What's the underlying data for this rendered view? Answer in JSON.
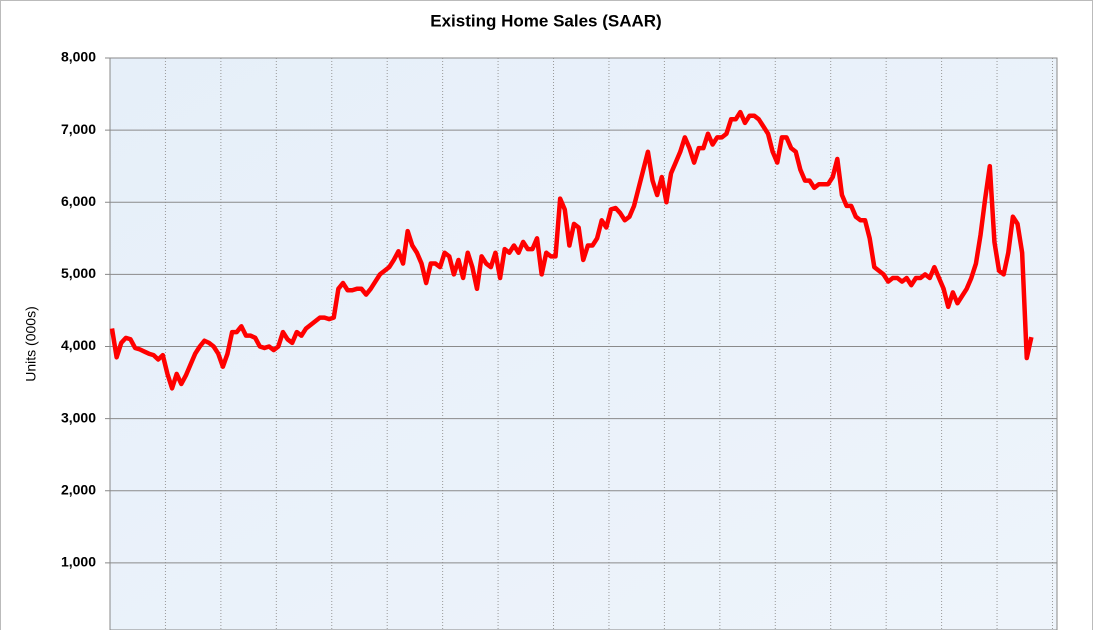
{
  "chart_data": {
    "type": "line",
    "title": "Existing Home Sales (SAAR)",
    "y_label": "Units (000s)",
    "series": [
      {
        "name": null,
        "color": "#ff0000",
        "values": [
          4250,
          3850,
          4050,
          4120,
          4100,
          3980,
          3960,
          3930,
          3900,
          3880,
          3820,
          3880,
          3620,
          3420,
          3620,
          3480,
          3600,
          3750,
          3900,
          4000,
          4080,
          4050,
          4000,
          3900,
          3720,
          3900,
          4200,
          4200,
          4280,
          4150,
          4150,
          4120,
          4000,
          3980,
          4000,
          3950,
          4000,
          4200,
          4100,
          4050,
          4200,
          4150,
          4250,
          4300,
          4350,
          4400,
          4400,
          4380,
          4400,
          4800,
          4880,
          4780,
          4780,
          4800,
          4800,
          4720,
          4800,
          4900,
          5000,
          5050,
          5100,
          5200,
          5320,
          5150,
          5600,
          5400,
          5300,
          5150,
          4880,
          5150,
          5150,
          5100,
          5300,
          5250,
          5000,
          5200,
          4950,
          5300,
          5100,
          4800,
          5250,
          5150,
          5100,
          5300,
          4950,
          5350,
          5300,
          5400,
          5300,
          5450,
          5350,
          5350,
          5500,
          5000,
          5300,
          5250,
          5250,
          6050,
          5900,
          5400,
          5700,
          5650,
          5200,
          5400,
          5400,
          5500,
          5750,
          5650,
          5900,
          5920,
          5850,
          5750,
          5800,
          5950,
          6200,
          6450,
          6700,
          6300,
          6100,
          6350,
          6000,
          6400,
          6550,
          6700,
          6900,
          6750,
          6550,
          6750,
          6750,
          6950,
          6800,
          6900,
          6900,
          6950,
          7150,
          7150,
          7250,
          7100,
          7200,
          7200,
          7150,
          7050,
          6950,
          6700,
          6550,
          6900,
          6900,
          6750,
          6700,
          6450,
          6300,
          6300,
          6200,
          6250,
          6250,
          6250,
          6350,
          6600,
          6100,
          5950,
          5950,
          5800,
          5750,
          5750,
          5500,
          5100,
          5050,
          5000,
          4900,
          4950,
          4950,
          4900,
          4950,
          4850,
          4950,
          4950,
          5000,
          4950,
          5100,
          4950,
          4800,
          4550,
          4750,
          4600,
          4700,
          4800,
          4950,
          5150,
          5550,
          6050,
          6500,
          5450,
          5050,
          5000,
          5300,
          5800,
          5700,
          5300,
          3840,
          4130
        ]
      }
    ],
    "ylim": [
      0,
      8000
    ],
    "yticks": [
      {
        "value": 1000,
        "label": "1,000"
      },
      {
        "value": 2000,
        "label": "2,000"
      },
      {
        "value": 3000,
        "label": "3,000"
      },
      {
        "value": 4000,
        "label": "4,000"
      },
      {
        "value": 5000,
        "label": "5,000"
      },
      {
        "value": 6000,
        "label": "6,000"
      },
      {
        "value": 7000,
        "label": "7,000"
      },
      {
        "value": 8000,
        "label": "8,000"
      }
    ],
    "grid": true
  }
}
